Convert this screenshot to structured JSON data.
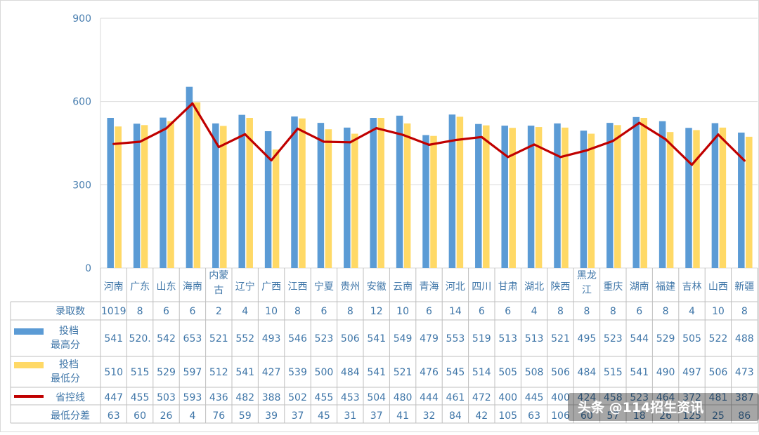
{
  "chart_data": {
    "type": "bar",
    "categories": [
      "河南",
      "广东",
      "山东",
      "海南",
      "内蒙古",
      "辽宁",
      "广西",
      "江西",
      "宁夏",
      "贵州",
      "安徽",
      "云南",
      "青海",
      "河北",
      "四川",
      "甘肃",
      "湖北",
      "陕西",
      "黑龙江",
      "重庆",
      "湖南",
      "福建",
      "吉林",
      "山西",
      "新疆"
    ],
    "category_lines": [
      [
        "河南"
      ],
      [
        "广东"
      ],
      [
        "山东"
      ],
      [
        "海南"
      ],
      [
        "内蒙",
        "古"
      ],
      [
        "辽宁"
      ],
      [
        "广西"
      ],
      [
        "江西"
      ],
      [
        "宁夏"
      ],
      [
        "贵州"
      ],
      [
        "安徽"
      ],
      [
        "云南"
      ],
      [
        "青海"
      ],
      [
        "河北"
      ],
      [
        "四川"
      ],
      [
        "甘肃"
      ],
      [
        "湖北"
      ],
      [
        "陕西"
      ],
      [
        "黑龙",
        "江"
      ],
      [
        "重庆"
      ],
      [
        "湖南"
      ],
      [
        "福建"
      ],
      [
        "吉林"
      ],
      [
        "山西"
      ],
      [
        "新疆"
      ]
    ],
    "ylim": [
      0,
      900
    ],
    "yticks": [
      0,
      300,
      600,
      900
    ],
    "series": [
      {
        "name_lines": [
          "投档",
          "最高分"
        ],
        "type": "bar",
        "color": "#5b9bd5",
        "values": [
          541,
          520,
          542,
          653,
          521,
          552,
          493,
          546,
          523,
          506,
          541,
          549,
          479,
          553,
          519,
          513,
          513,
          521,
          495,
          523,
          544,
          529,
          505,
          522,
          488
        ]
      },
      {
        "name_lines": [
          "投档",
          "最低分"
        ],
        "type": "bar",
        "color": "#ffd966",
        "values": [
          510,
          515,
          529,
          597,
          512,
          541,
          427,
          539,
          500,
          484,
          541,
          521,
          476,
          545,
          514,
          505,
          508,
          506,
          484,
          515,
          541,
          490,
          497,
          506,
          473
        ]
      },
      {
        "name_lines": [
          "省控线"
        ],
        "type": "line",
        "color": "#c00000",
        "values": [
          447,
          455,
          503,
          593,
          436,
          482,
          388,
          502,
          455,
          453,
          504,
          480,
          444,
          461,
          472,
          400,
          445,
          400,
          424,
          458,
          523,
          464,
          372,
          481,
          387
        ]
      }
    ],
    "table": {
      "rows": [
        {
          "label": "录取数",
          "values": [
            "1019",
            "8",
            "6",
            "6",
            "2",
            "4",
            "10",
            "8",
            "6",
            "8",
            "12",
            "10",
            "6",
            "14",
            "6",
            "6",
            "4",
            "8",
            "8",
            "8",
            "6",
            "8",
            "4",
            "10",
            "8"
          ]
        },
        {
          "label_series": 0,
          "values": [
            "541",
            "520.",
            "542",
            "653",
            "521",
            "552",
            "493",
            "546",
            "523",
            "506",
            "541",
            "549",
            "479",
            "553",
            "519",
            "513",
            "513",
            "521",
            "495",
            "523",
            "544",
            "529",
            "505",
            "522",
            "488"
          ]
        },
        {
          "label_series": 1,
          "values": [
            "510",
            "515",
            "529",
            "597",
            "512",
            "541",
            "427",
            "539",
            "500",
            "484",
            "541",
            "521",
            "476",
            "545",
            "514",
            "505",
            "508",
            "506",
            "484",
            "515",
            "541",
            "490",
            "497",
            "506",
            "473"
          ]
        },
        {
          "label_series": 2,
          "values": [
            "447",
            "455",
            "503",
            "593",
            "436",
            "482",
            "388",
            "502",
            "455",
            "453",
            "504",
            "480",
            "444",
            "461",
            "472",
            "400",
            "445",
            "400",
            "424",
            "458",
            "523",
            "464",
            "372",
            "481",
            "387"
          ]
        },
        {
          "label": "最低分差",
          "values": [
            "63",
            "60",
            "26",
            "4",
            "76",
            "59",
            "39",
            "37",
            "45",
            "31",
            "37",
            "41",
            "32",
            "84",
            "42",
            "105",
            "63",
            "106",
            "60",
            "57",
            "18",
            "26",
            "125",
            "25",
            "86"
          ]
        }
      ]
    }
  },
  "watermark": "头条 @114招生资讯",
  "colors": {
    "frame": "#d9d9d9",
    "table_border": "#bfbfbf",
    "text": "#3f76a8"
  }
}
